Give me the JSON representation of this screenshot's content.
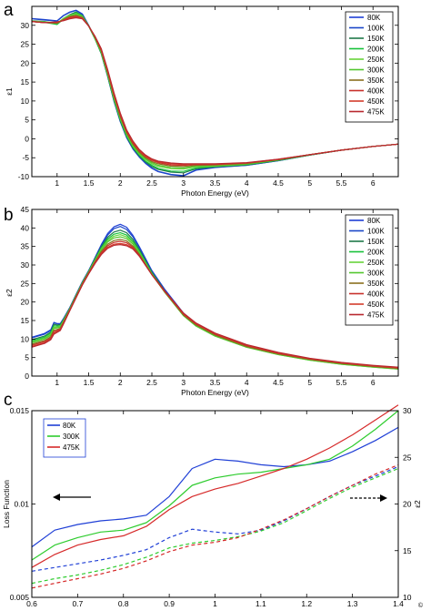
{
  "colors": {
    "80K": "#1f3fd6",
    "100K": "#1a46c8",
    "150K": "#1f7a4a",
    "200K": "#17c23a",
    "250K": "#68d43a",
    "300K": "#52c62e",
    "350K": "#8a6f1e",
    "400K": "#c8302a",
    "450K": "#d43c2c",
    "475K": "#b8282e",
    "c_80K": "#1f3fd6",
    "c_300K": "#2ecc2e",
    "c_475K": "#d62a2a"
  },
  "copyright": "©",
  "chart_data": [
    {
      "panel": "a",
      "type": "line",
      "xlabel": "Photon Energy (eV)",
      "ylabel": "ε1",
      "xlim": [
        0.6,
        6.4
      ],
      "ylim": [
        -10,
        35
      ],
      "xticks": [
        1,
        1.5,
        2,
        2.5,
        3,
        3.5,
        4,
        4.5,
        5,
        5.5,
        6
      ],
      "yticks": [
        -10,
        -5,
        0,
        5,
        10,
        15,
        20,
        25,
        30
      ],
      "legend_position": "top-right",
      "x": [
        0.6,
        0.8,
        1.0,
        1.1,
        1.2,
        1.3,
        1.4,
        1.5,
        1.6,
        1.7,
        1.8,
        1.9,
        2.0,
        2.1,
        2.2,
        2.3,
        2.4,
        2.5,
        2.6,
        2.8,
        3.0,
        3.2,
        3.5,
        4.0,
        4.5,
        5.0,
        5.5,
        6.0,
        6.4
      ],
      "series": [
        {
          "name": "80K",
          "values": [
            31.8,
            31.5,
            31.2,
            32.6,
            33.5,
            34.0,
            33.0,
            30.0,
            26.5,
            22.5,
            16.5,
            10.0,
            4.5,
            0.3,
            -2.7,
            -4.8,
            -6.5,
            -7.8,
            -8.7,
            -9.5,
            -9.8,
            -8.3,
            -7.6,
            -7.0,
            -5.8,
            -4.3,
            -3.0,
            -2.0,
            -1.4
          ]
        },
        {
          "name": "100K",
          "values": [
            31.7,
            31.4,
            31.1,
            32.5,
            33.4,
            33.9,
            32.9,
            30.0,
            26.5,
            22.5,
            16.5,
            10.0,
            4.6,
            0.4,
            -2.6,
            -4.7,
            -6.4,
            -7.7,
            -8.6,
            -9.4,
            -9.7,
            -8.2,
            -7.5,
            -7.0,
            -5.8,
            -4.3,
            -3.0,
            -2.0,
            -1.4
          ]
        },
        {
          "name": "150K",
          "values": [
            31.2,
            31.0,
            30.4,
            31.8,
            32.8,
            33.5,
            32.6,
            29.8,
            26.4,
            22.5,
            16.6,
            10.2,
            4.8,
            0.6,
            -2.4,
            -4.5,
            -6.1,
            -7.3,
            -8.1,
            -8.8,
            -9.0,
            -7.9,
            -7.4,
            -6.9,
            -5.7,
            -4.3,
            -3.0,
            -2.0,
            -1.4
          ]
        },
        {
          "name": "200K",
          "values": [
            31.0,
            30.8,
            30.2,
            31.6,
            32.6,
            33.3,
            32.5,
            29.8,
            26.4,
            22.6,
            16.8,
            10.4,
            5.0,
            0.8,
            -2.2,
            -4.3,
            -5.9,
            -7.0,
            -7.8,
            -8.5,
            -8.6,
            -7.7,
            -7.3,
            -6.8,
            -5.7,
            -4.3,
            -3.0,
            -2.0,
            -1.4
          ]
        },
        {
          "name": "250K",
          "values": [
            31.1,
            30.9,
            30.6,
            31.8,
            32.7,
            33.1,
            32.4,
            29.9,
            26.6,
            22.8,
            17.0,
            10.7,
            5.3,
            1.1,
            -1.9,
            -4.0,
            -5.5,
            -6.6,
            -7.3,
            -7.9,
            -8.0,
            -7.4,
            -7.2,
            -6.7,
            -5.6,
            -4.2,
            -3.0,
            -2.0,
            -1.4
          ]
        },
        {
          "name": "300K",
          "values": [
            31.0,
            30.8,
            30.5,
            31.6,
            32.5,
            32.9,
            32.3,
            29.9,
            26.7,
            23.0,
            17.3,
            11.0,
            5.6,
            1.3,
            -1.7,
            -3.8,
            -5.3,
            -6.3,
            -7.0,
            -7.6,
            -7.7,
            -7.2,
            -7.0,
            -6.6,
            -5.6,
            -4.2,
            -3.0,
            -2.0,
            -1.4
          ]
        },
        {
          "name": "350K",
          "values": [
            31.0,
            30.7,
            30.6,
            31.5,
            32.3,
            32.6,
            32.1,
            29.9,
            26.8,
            23.2,
            17.5,
            11.3,
            5.9,
            1.6,
            -1.4,
            -3.5,
            -5.0,
            -6.0,
            -6.6,
            -7.2,
            -7.3,
            -7.0,
            -6.9,
            -6.5,
            -5.5,
            -4.2,
            -3.0,
            -2.0,
            -1.4
          ]
        },
        {
          "name": "400K",
          "values": [
            31.0,
            30.7,
            30.7,
            31.4,
            32.1,
            32.4,
            31.9,
            29.8,
            26.9,
            23.4,
            17.8,
            11.6,
            6.2,
            1.9,
            -1.1,
            -3.2,
            -4.7,
            -5.7,
            -6.3,
            -6.9,
            -7.0,
            -6.8,
            -6.8,
            -6.4,
            -5.5,
            -4.2,
            -3.0,
            -2.0,
            -1.4
          ]
        },
        {
          "name": "450K",
          "values": [
            31.0,
            30.7,
            30.8,
            31.3,
            31.9,
            32.2,
            31.8,
            29.8,
            27.0,
            23.6,
            18.0,
            11.9,
            6.5,
            2.2,
            -0.8,
            -3.0,
            -4.5,
            -5.5,
            -6.1,
            -6.6,
            -6.8,
            -6.7,
            -6.7,
            -6.4,
            -5.4,
            -4.2,
            -3.0,
            -2.0,
            -1.4
          ]
        },
        {
          "name": "475K",
          "values": [
            31.0,
            30.7,
            30.9,
            31.2,
            31.7,
            32.0,
            31.7,
            29.8,
            27.1,
            23.8,
            18.3,
            12.2,
            6.8,
            2.4,
            -0.6,
            -2.8,
            -4.3,
            -5.3,
            -5.9,
            -6.4,
            -6.6,
            -6.6,
            -6.6,
            -6.3,
            -5.4,
            -4.2,
            -3.0,
            -2.0,
            -1.4
          ]
        }
      ]
    },
    {
      "panel": "b",
      "type": "line",
      "xlabel": "Photon Energy (eV)",
      "ylabel": "ε2",
      "xlim": [
        0.6,
        6.4
      ],
      "ylim": [
        0,
        45
      ],
      "xticks": [
        1,
        1.5,
        2,
        2.5,
        3,
        3.5,
        4,
        4.5,
        5,
        5.5,
        6
      ],
      "yticks": [
        0,
        5,
        10,
        15,
        20,
        25,
        30,
        35,
        40,
        45
      ],
      "legend_position": "top-right",
      "x": [
        0.6,
        0.7,
        0.8,
        0.9,
        0.95,
        1.0,
        1.05,
        1.1,
        1.2,
        1.3,
        1.4,
        1.5,
        1.6,
        1.7,
        1.8,
        1.9,
        2.0,
        2.1,
        2.2,
        2.3,
        2.5,
        2.7,
        3.0,
        3.2,
        3.5,
        4.0,
        4.5,
        5.0,
        5.5,
        6.0,
        6.4
      ],
      "series": [
        {
          "name": "80K",
          "values": [
            10.5,
            11.0,
            11.5,
            12.5,
            14.5,
            14.2,
            14.2,
            15.5,
            18.5,
            22.0,
            25.5,
            28.5,
            32.0,
            35.5,
            38.5,
            40.3,
            41.0,
            40.2,
            38.0,
            35.0,
            28.5,
            23.5,
            17.0,
            14.2,
            11.5,
            8.3,
            6.2,
            4.7,
            3.6,
            2.8,
            2.3
          ]
        },
        {
          "name": "100K",
          "values": [
            10.3,
            10.8,
            11.3,
            12.3,
            14.4,
            14.1,
            14.1,
            15.4,
            18.4,
            21.9,
            25.4,
            28.4,
            31.9,
            35.3,
            38.1,
            39.8,
            40.4,
            39.6,
            37.6,
            34.7,
            28.3,
            23.3,
            16.9,
            14.1,
            11.4,
            8.2,
            6.1,
            4.6,
            3.5,
            2.7,
            2.2
          ]
        },
        {
          "name": "150K",
          "values": [
            9.8,
            10.3,
            10.8,
            11.9,
            14.0,
            13.8,
            13.9,
            15.2,
            18.3,
            21.8,
            25.3,
            28.3,
            31.7,
            34.9,
            37.5,
            38.9,
            39.4,
            38.7,
            36.9,
            34.2,
            28.0,
            23.1,
            16.6,
            13.9,
            11.2,
            8.1,
            6.0,
            4.5,
            3.4,
            2.6,
            2.1
          ]
        },
        {
          "name": "200K",
          "values": [
            9.5,
            10.0,
            10.5,
            11.6,
            13.6,
            13.5,
            13.6,
            15.0,
            18.2,
            21.7,
            25.2,
            28.2,
            31.5,
            34.6,
            37.0,
            38.3,
            38.7,
            38.1,
            36.4,
            33.8,
            27.8,
            22.9,
            16.4,
            13.6,
            10.9,
            7.9,
            5.9,
            4.4,
            3.3,
            2.5,
            2.0
          ]
        },
        {
          "name": "250K",
          "values": [
            9.2,
            9.7,
            10.2,
            11.3,
            13.2,
            13.2,
            13.4,
            14.9,
            18.1,
            21.6,
            25.1,
            28.1,
            31.3,
            34.3,
            36.6,
            37.8,
            38.2,
            37.6,
            36.0,
            33.5,
            27.6,
            22.8,
            16.3,
            13.5,
            10.8,
            7.8,
            5.8,
            4.3,
            3.2,
            2.4,
            1.9
          ]
        },
        {
          "name": "300K",
          "values": [
            9.0,
            9.5,
            10.0,
            11.0,
            12.9,
            13.0,
            13.2,
            14.7,
            18.0,
            21.5,
            25.0,
            28.0,
            31.1,
            34.0,
            36.2,
            37.3,
            37.6,
            37.1,
            35.6,
            33.2,
            27.5,
            22.7,
            16.3,
            13.5,
            10.8,
            7.8,
            5.8,
            4.3,
            3.2,
            2.4,
            1.9
          ]
        },
        {
          "name": "350K",
          "values": [
            8.6,
            9.1,
            9.6,
            10.6,
            12.4,
            12.6,
            12.9,
            14.5,
            17.9,
            21.4,
            24.9,
            27.9,
            30.9,
            33.6,
            35.6,
            36.6,
            36.9,
            36.5,
            35.1,
            32.9,
            27.4,
            22.8,
            16.5,
            13.8,
            11.1,
            8.0,
            6.0,
            4.5,
            3.4,
            2.6,
            2.1
          ]
        },
        {
          "name": "400K",
          "values": [
            8.3,
            8.8,
            9.3,
            10.3,
            12.0,
            12.3,
            12.7,
            14.3,
            17.8,
            21.3,
            24.8,
            27.8,
            30.7,
            33.3,
            35.2,
            36.1,
            36.4,
            36.0,
            34.8,
            32.7,
            27.4,
            22.9,
            16.7,
            14.0,
            11.3,
            8.2,
            6.1,
            4.6,
            3.5,
            2.7,
            2.2
          ]
        },
        {
          "name": "450K",
          "values": [
            8.0,
            8.5,
            9.0,
            10.0,
            11.6,
            12.0,
            12.5,
            14.1,
            17.7,
            21.2,
            24.7,
            27.7,
            30.5,
            33.0,
            34.8,
            35.6,
            35.8,
            35.5,
            34.5,
            32.5,
            27.4,
            23.0,
            16.9,
            14.2,
            11.5,
            8.4,
            6.3,
            4.7,
            3.6,
            2.8,
            2.3
          ]
        },
        {
          "name": "475K",
          "values": [
            7.8,
            8.3,
            8.8,
            9.8,
            11.3,
            11.8,
            12.3,
            14.0,
            17.6,
            21.1,
            24.6,
            27.6,
            30.4,
            32.8,
            34.5,
            35.3,
            35.5,
            35.2,
            34.3,
            32.4,
            27.4,
            23.1,
            17.0,
            14.3,
            11.6,
            8.5,
            6.4,
            4.8,
            3.7,
            2.9,
            2.4
          ]
        }
      ]
    },
    {
      "panel": "c",
      "type": "line",
      "xlabel": "Photon Energy (eV)",
      "ylabel": "Loss Function",
      "ylabel_right": "ε2",
      "xlim": [
        0.6,
        1.4
      ],
      "ylim": [
        0.005,
        0.015
      ],
      "ylim_right": [
        10,
        30
      ],
      "xticks": [
        0.6,
        0.7,
        0.8,
        0.9,
        1,
        1.1,
        1.2,
        1.3,
        1.4
      ],
      "xtick_labels": [
        "0.6",
        "0.7",
        "0.8",
        "0.9",
        "1",
        "1.1",
        "1.2",
        "1.3",
        "1.4"
      ],
      "yticks": [
        0.005,
        0.01,
        0.015
      ],
      "ytick_labels": [
        "0.005",
        "0.01",
        "0.015"
      ],
      "yticks_right": [
        10,
        15,
        20,
        25,
        30
      ],
      "legend_position": "top-left",
      "x": [
        0.6,
        0.65,
        0.7,
        0.75,
        0.8,
        0.85,
        0.9,
        0.95,
        1.0,
        1.05,
        1.1,
        1.15,
        1.2,
        1.25,
        1.3,
        1.35,
        1.4
      ],
      "series": [
        {
          "name": "80K",
          "axis": "left",
          "style": "solid",
          "values": [
            0.0077,
            0.0086,
            0.0089,
            0.0091,
            0.0092,
            0.0094,
            0.0104,
            0.0119,
            0.0124,
            0.0123,
            0.0121,
            0.012,
            0.0121,
            0.0123,
            0.0128,
            0.0134,
            0.0141
          ]
        },
        {
          "name": "300K",
          "axis": "left",
          "style": "solid",
          "values": [
            0.007,
            0.0078,
            0.0082,
            0.0085,
            0.0086,
            0.009,
            0.0099,
            0.011,
            0.0114,
            0.0116,
            0.0117,
            0.0119,
            0.0121,
            0.0124,
            0.0131,
            0.014,
            0.015
          ]
        },
        {
          "name": "475K",
          "axis": "left",
          "style": "solid",
          "values": [
            0.0066,
            0.0073,
            0.0078,
            0.0081,
            0.0083,
            0.0088,
            0.0097,
            0.0104,
            0.0108,
            0.0111,
            0.0115,
            0.0119,
            0.0124,
            0.013,
            0.0137,
            0.0145,
            0.0153
          ]
        },
        {
          "name": "80K",
          "axis": "right",
          "style": "dashed",
          "values": [
            12.8,
            13.2,
            13.6,
            14.0,
            14.5,
            15.1,
            16.4,
            17.3,
            17.0,
            16.8,
            17.2,
            18.2,
            19.5,
            20.8,
            22.0,
            23.0,
            24.0
          ]
        },
        {
          "name": "300K",
          "axis": "right",
          "style": "dashed",
          "values": [
            11.5,
            12.0,
            12.4,
            12.9,
            13.5,
            14.3,
            15.3,
            15.8,
            16.1,
            16.5,
            17.1,
            18.0,
            19.3,
            20.6,
            21.8,
            22.8,
            23.8
          ]
        },
        {
          "name": "475K",
          "axis": "right",
          "style": "dashed",
          "values": [
            11.0,
            11.5,
            12.0,
            12.5,
            13.1,
            13.9,
            14.9,
            15.6,
            15.9,
            16.4,
            17.3,
            18.3,
            19.5,
            20.8,
            22.0,
            23.2,
            24.2
          ]
        }
      ]
    }
  ]
}
